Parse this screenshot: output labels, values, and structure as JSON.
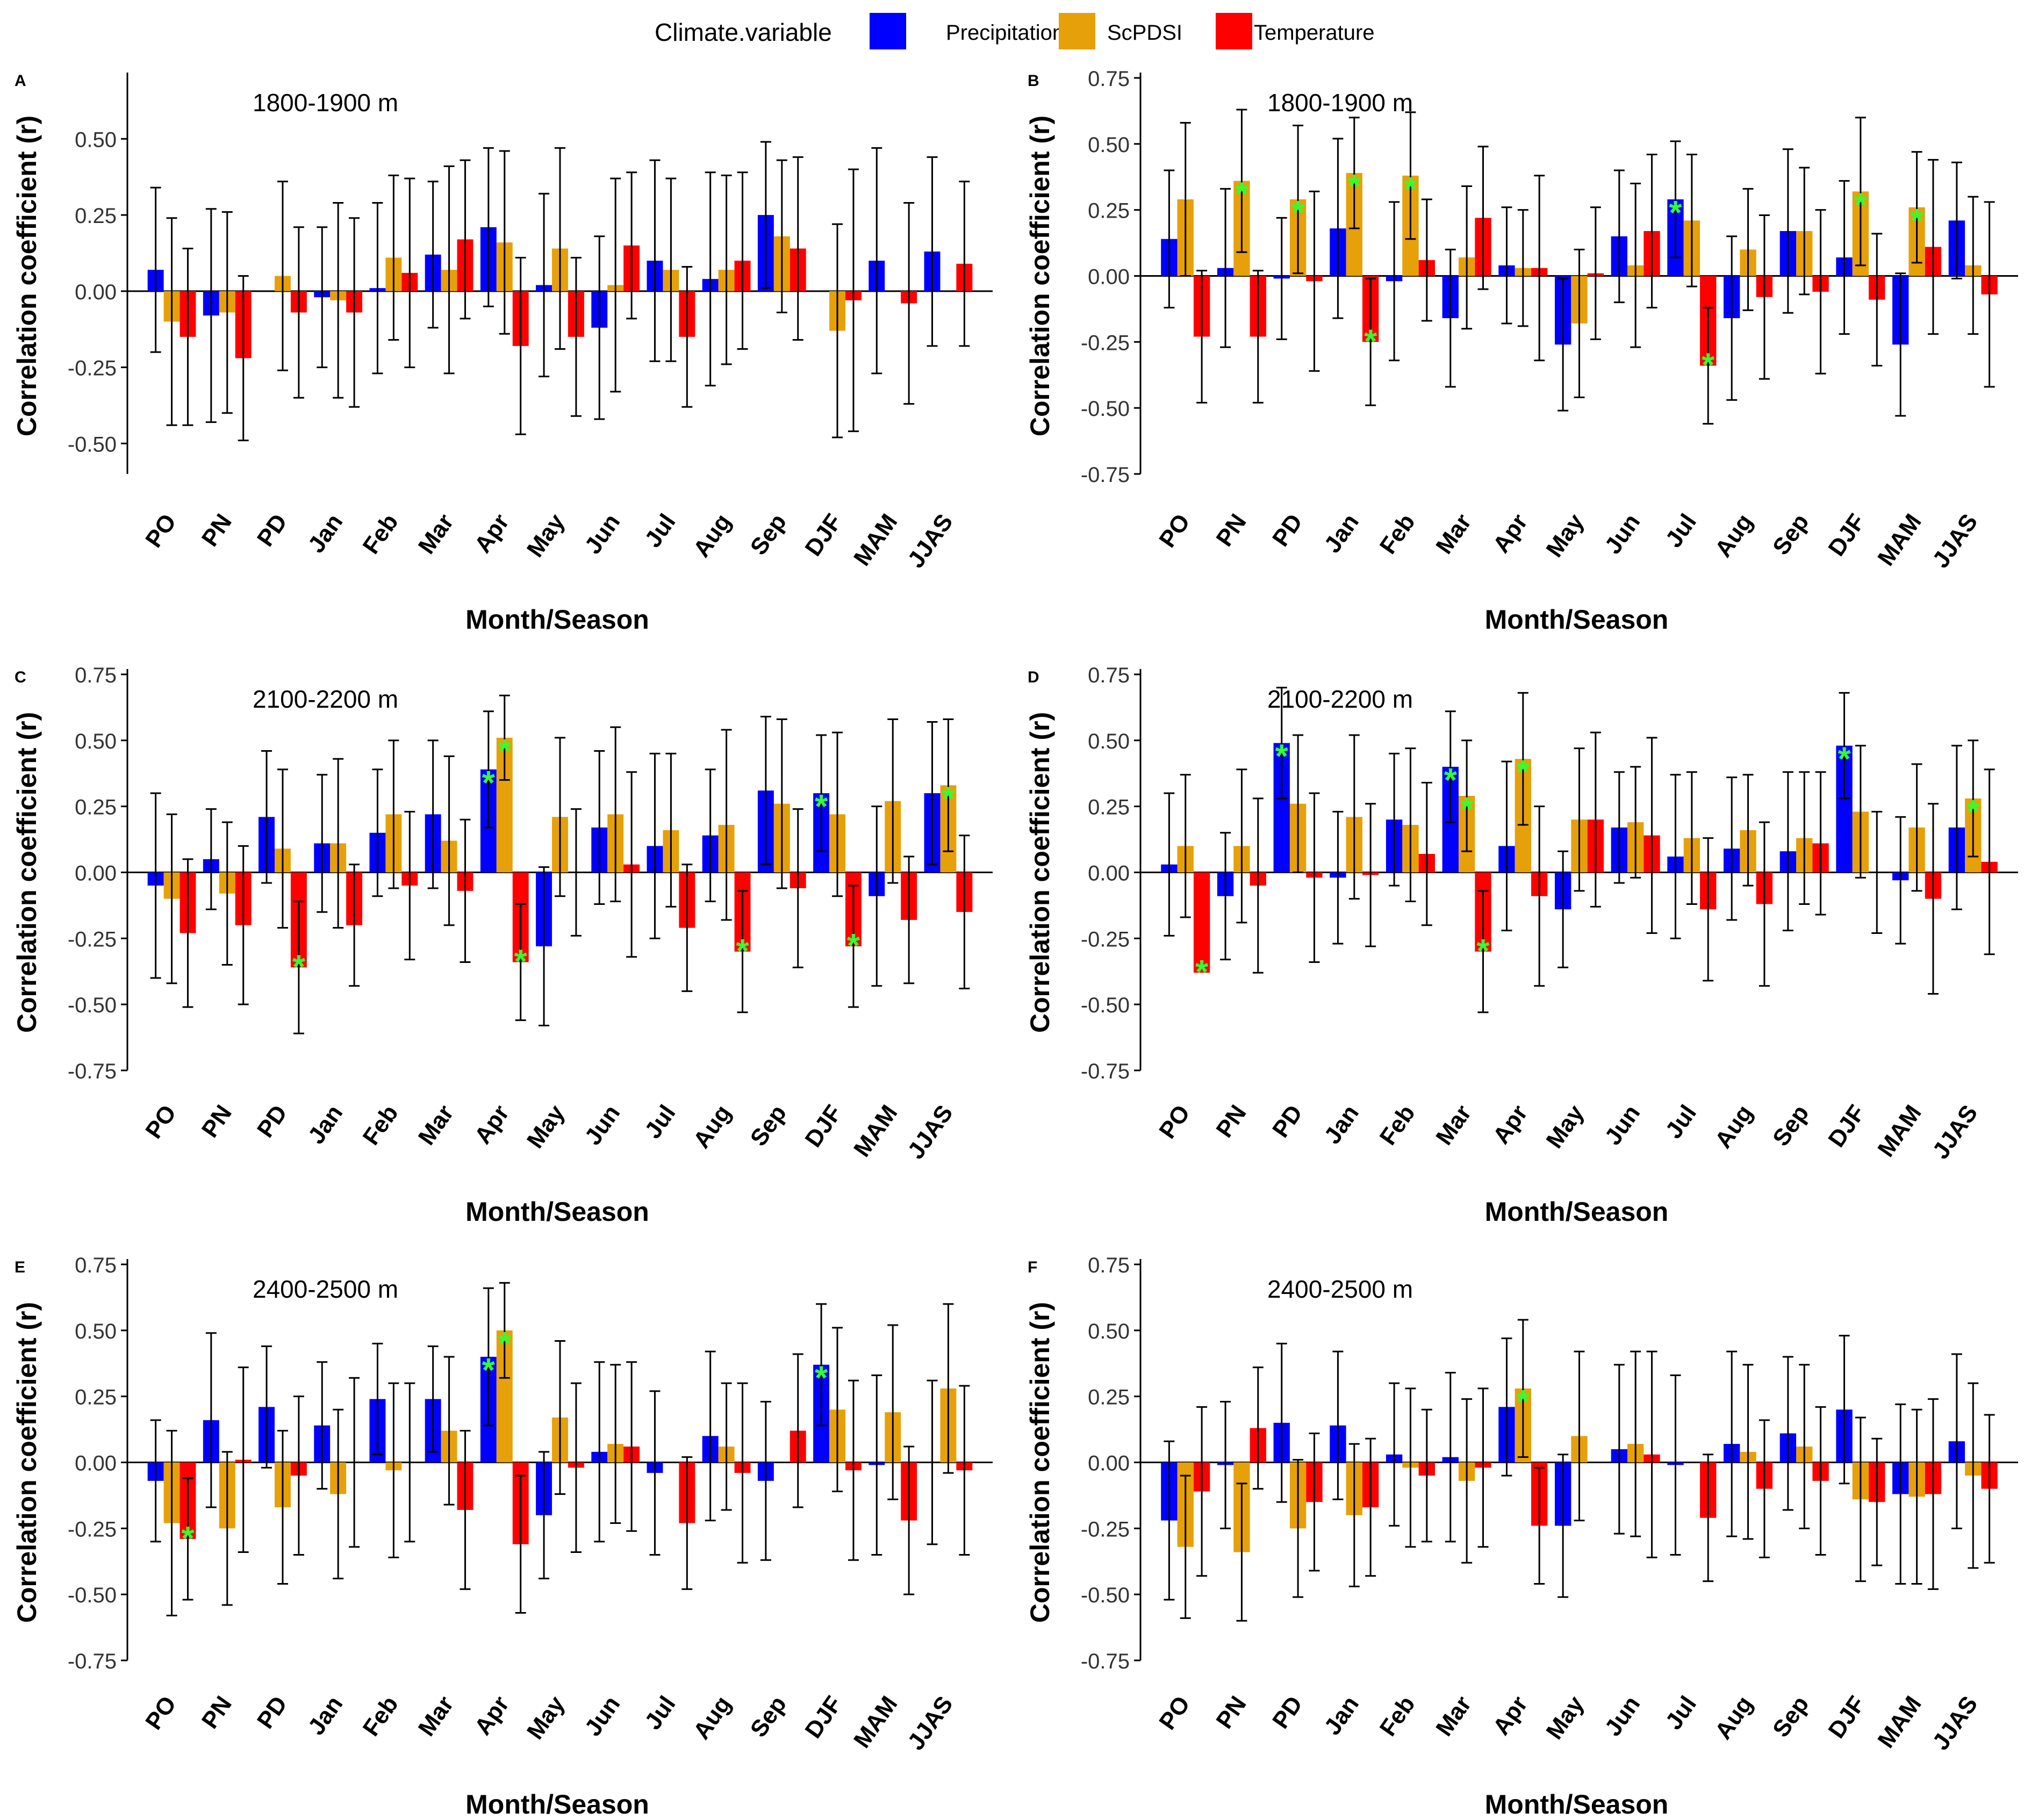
{
  "legend": {
    "title": "Climate.variable",
    "items": [
      {
        "label": "Precipitation",
        "color": "#0000FF"
      },
      {
        "label": "ScPDSI",
        "color": "#E6A00A"
      },
      {
        "label": "Temperature",
        "color": "#FF0000"
      }
    ],
    "placement": "top-center"
  },
  "significance_marker": {
    "symbol": "*",
    "color": "#33FF33"
  },
  "chart_data": [
    {
      "panel": "A",
      "type": "bar",
      "title": "1800-1900 m",
      "xlabel": "Month/Season",
      "ylabel": "Correlation coefficient (r)",
      "ylim": [
        -0.6,
        0.7
      ],
      "yticks": [
        "0.50",
        "0.25",
        "0.00",
        "-0.25",
        "-0.50"
      ],
      "categories": [
        "PO",
        "PN",
        "PD",
        "Jan",
        "Feb",
        "Mar",
        "Apr",
        "May",
        "Jun",
        "Jul",
        "Aug",
        "Sep",
        "DJF",
        "MAM",
        "JJAS"
      ],
      "series": [
        {
          "name": "Precipitation",
          "values": [
            0.07,
            -0.08,
            0.0,
            -0.02,
            0.01,
            0.12,
            0.21,
            0.02,
            -0.12,
            0.1,
            0.04,
            0.25,
            0.0,
            0.1,
            0.13
          ],
          "errors": [
            0.27,
            0.35,
            0.0,
            0.23,
            0.28,
            0.24,
            0.26,
            0.3,
            0.3,
            0.33,
            0.35,
            0.24,
            0.0,
            0.37,
            0.31
          ],
          "significant": []
        },
        {
          "name": "ScPDSI",
          "values": [
            -0.1,
            -0.07,
            0.05,
            -0.03,
            0.11,
            0.07,
            0.16,
            0.14,
            0.02,
            0.07,
            0.07,
            0.18,
            -0.13,
            0.0,
            0.0
          ],
          "errors": [
            0.34,
            0.33,
            0.31,
            0.32,
            0.27,
            0.34,
            0.3,
            0.33,
            0.35,
            0.3,
            0.31,
            0.25,
            0.35,
            0.0,
            0.0
          ],
          "significant": []
        },
        {
          "name": "Temperature",
          "values": [
            -0.15,
            -0.22,
            -0.07,
            -0.07,
            0.06,
            0.17,
            -0.18,
            -0.15,
            0.15,
            -0.15,
            0.1,
            0.14,
            -0.03,
            -0.04,
            0.09
          ],
          "errors": [
            0.29,
            0.27,
            0.28,
            0.31,
            0.31,
            0.26,
            0.29,
            0.26,
            0.24,
            0.23,
            0.29,
            0.3,
            0.43,
            0.33,
            0.27
          ],
          "significant": []
        }
      ]
    },
    {
      "panel": "B",
      "type": "bar",
      "title": "1800-1900 m",
      "xlabel": "Month/Season",
      "ylabel": "Correlation coefficient (r)",
      "ylim": [
        -0.75,
        0.75
      ],
      "yticks": [
        "0.75",
        "0.50",
        "0.25",
        "0.00",
        "-0.25",
        "-0.50",
        "-0.75"
      ],
      "categories": [
        "PO",
        "PN",
        "PD",
        "Jan",
        "Feb",
        "Mar",
        "Apr",
        "May",
        "Jun",
        "Jul",
        "Aug",
        "Sep",
        "DJF",
        "MAM",
        "JJAS"
      ],
      "series": [
        {
          "name": "Precipitation",
          "values": [
            0.14,
            0.03,
            -0.01,
            0.18,
            -0.02,
            -0.16,
            0.04,
            -0.26,
            0.15,
            0.29,
            -0.16,
            0.17,
            0.07,
            -0.26,
            0.21
          ],
          "errors": [
            0.26,
            0.3,
            0.23,
            0.34,
            0.3,
            0.26,
            0.22,
            0.25,
            0.25,
            0.22,
            0.31,
            0.31,
            0.29,
            0.27,
            0.22
          ],
          "significant": [
            9
          ]
        },
        {
          "name": "ScPDSI",
          "values": [
            0.29,
            0.36,
            0.29,
            0.39,
            0.38,
            0.07,
            0.03,
            -0.18,
            0.04,
            0.21,
            0.1,
            0.17,
            0.32,
            0.26,
            0.04
          ],
          "errors": [
            0.29,
            0.27,
            0.28,
            0.21,
            0.24,
            0.27,
            0.22,
            0.28,
            0.31,
            0.25,
            0.23,
            0.24,
            0.28,
            0.21,
            0.26
          ],
          "significant": [
            1,
            2,
            3,
            4,
            12,
            13
          ]
        },
        {
          "name": "Temperature",
          "values": [
            -0.23,
            -0.23,
            -0.02,
            -0.25,
            0.06,
            0.22,
            0.03,
            0.01,
            0.17,
            -0.34,
            -0.08,
            -0.06,
            -0.09,
            0.11,
            -0.07
          ],
          "errors": [
            0.25,
            0.25,
            0.34,
            0.24,
            0.23,
            0.27,
            0.35,
            0.25,
            0.29,
            0.22,
            0.31,
            0.31,
            0.25,
            0.33,
            0.35
          ],
          "significant": [
            3,
            9
          ]
        }
      ]
    },
    {
      "panel": "C",
      "type": "bar",
      "title": "2100-2200 m",
      "xlabel": "Month/Season",
      "ylabel": "Correlation coefficient (r)",
      "ylim": [
        -0.75,
        0.75
      ],
      "yticks": [
        "0.75",
        "0.50",
        "0.25",
        "0.00",
        "-0.25",
        "-0.50",
        "-0.75"
      ],
      "categories": [
        "PO",
        "PN",
        "PD",
        "Jan",
        "Feb",
        "Mar",
        "Apr",
        "May",
        "Jun",
        "Jul",
        "Aug",
        "Sep",
        "DJF",
        "MAM",
        "JJAS"
      ],
      "series": [
        {
          "name": "Precipitation",
          "values": [
            -0.05,
            0.05,
            0.21,
            0.11,
            0.15,
            0.22,
            0.39,
            -0.28,
            0.17,
            0.1,
            0.14,
            0.31,
            0.3,
            -0.09,
            0.3
          ],
          "errors": [
            0.35,
            0.19,
            0.25,
            0.26,
            0.24,
            0.28,
            0.22,
            0.3,
            0.29,
            0.35,
            0.25,
            0.28,
            0.22,
            0.34,
            0.27
          ],
          "significant": [
            6,
            12
          ]
        },
        {
          "name": "ScPDSI",
          "values": [
            -0.1,
            -0.08,
            0.09,
            0.11,
            0.22,
            0.12,
            0.51,
            0.21,
            0.22,
            0.16,
            0.18,
            0.26,
            0.22,
            0.27,
            0.33
          ],
          "errors": [
            0.32,
            0.27,
            0.3,
            0.32,
            0.28,
            0.32,
            0.16,
            0.3,
            0.33,
            0.29,
            0.36,
            0.32,
            0.31,
            0.31,
            0.25
          ],
          "significant": [
            6,
            14
          ]
        },
        {
          "name": "Temperature",
          "values": [
            -0.23,
            -0.2,
            -0.36,
            -0.2,
            -0.05,
            -0.07,
            -0.34,
            0.0,
            0.03,
            -0.21,
            -0.3,
            -0.06,
            -0.28,
            -0.18,
            -0.15
          ],
          "errors": [
            0.28,
            0.3,
            0.25,
            0.23,
            0.28,
            0.27,
            0.22,
            0.24,
            0.35,
            0.24,
            0.23,
            0.3,
            0.23,
            0.24,
            0.29
          ],
          "significant": [
            2,
            6,
            10,
            12
          ]
        }
      ]
    },
    {
      "panel": "D",
      "type": "bar",
      "title": "2100-2200 m",
      "xlabel": "Month/Season",
      "ylabel": "Correlation coefficient (r)",
      "ylim": [
        -0.75,
        0.75
      ],
      "yticks": [
        "0.75",
        "0.50",
        "0.25",
        "0.00",
        "-0.25",
        "-0.50",
        "-0.75"
      ],
      "categories": [
        "PO",
        "PN",
        "PD",
        "Jan",
        "Feb",
        "Mar",
        "Apr",
        "May",
        "Jun",
        "Jul",
        "Aug",
        "Sep",
        "DJF",
        "MAM",
        "JJAS"
      ],
      "series": [
        {
          "name": "Precipitation",
          "values": [
            0.03,
            -0.09,
            0.49,
            -0.02,
            0.2,
            0.4,
            0.1,
            -0.14,
            0.17,
            0.06,
            0.09,
            0.08,
            0.48,
            -0.03,
            0.17
          ],
          "errors": [
            0.27,
            0.24,
            0.21,
            0.25,
            0.25,
            0.21,
            0.32,
            0.22,
            0.21,
            0.31,
            0.27,
            0.3,
            0.2,
            0.24,
            0.31
          ],
          "significant": [
            2,
            5,
            12
          ]
        },
        {
          "name": "ScPDSI",
          "values": [
            0.1,
            0.1,
            0.26,
            0.21,
            0.18,
            0.29,
            0.43,
            0.2,
            0.19,
            0.13,
            0.16,
            0.13,
            0.23,
            0.17,
            0.28
          ],
          "errors": [
            0.27,
            0.29,
            0.26,
            0.31,
            0.29,
            0.21,
            0.25,
            0.27,
            0.21,
            0.25,
            0.21,
            0.25,
            0.25,
            0.24,
            0.22
          ],
          "significant": [
            5,
            6,
            14
          ]
        },
        {
          "name": "Temperature",
          "values": [
            -0.38,
            -0.05,
            -0.02,
            -0.01,
            0.07,
            -0.3,
            -0.09,
            0.2,
            0.14,
            -0.14,
            -0.12,
            0.11,
            0.0,
            -0.1,
            0.04
          ],
          "errors": [
            0.0,
            0.33,
            0.32,
            0.27,
            0.27,
            0.23,
            0.34,
            0.33,
            0.37,
            0.27,
            0.31,
            0.27,
            0.23,
            0.36,
            0.35
          ],
          "significant": [
            0,
            5
          ]
        }
      ]
    },
    {
      "panel": "E",
      "type": "bar",
      "title": "2400-2500 m",
      "xlabel": "Month/Season",
      "ylabel": "Correlation coefficient (r)",
      "ylim": [
        -0.75,
        0.75
      ],
      "yticks": [
        "0.75",
        "0.50",
        "0.25",
        "0.00",
        "-0.25",
        "-0.50",
        "-0.75"
      ],
      "categories": [
        "PO",
        "PN",
        "PD",
        "Jan",
        "Feb",
        "Mar",
        "Apr",
        "May",
        "Jun",
        "Jul",
        "Aug",
        "Sep",
        "DJF",
        "MAM",
        "JJAS"
      ],
      "series": [
        {
          "name": "Precipitation",
          "values": [
            -0.07,
            0.16,
            0.21,
            0.14,
            0.24,
            0.24,
            0.4,
            -0.2,
            0.04,
            -0.04,
            0.1,
            -0.07,
            0.37,
            -0.01,
            0.0
          ],
          "errors": [
            0.23,
            0.33,
            0.23,
            0.24,
            0.21,
            0.2,
            0.26,
            0.24,
            0.34,
            0.31,
            0.32,
            0.3,
            0.23,
            0.34,
            0.31
          ],
          "significant": [
            6,
            12
          ]
        },
        {
          "name": "ScPDSI",
          "values": [
            -0.23,
            -0.25,
            -0.17,
            -0.12,
            -0.03,
            0.12,
            0.5,
            0.17,
            0.07,
            0.0,
            0.06,
            0.0,
            0.2,
            0.19,
            0.28
          ],
          "errors": [
            0.35,
            0.29,
            0.29,
            0.32,
            0.33,
            0.28,
            0.18,
            0.29,
            0.3,
            0.0,
            0.24,
            0.0,
            0.31,
            0.33,
            0.32
          ],
          "significant": [
            6
          ]
        },
        {
          "name": "Temperature",
          "values": [
            -0.29,
            0.01,
            -0.05,
            0.0,
            0.0,
            -0.18,
            -0.31,
            -0.02,
            0.06,
            -0.23,
            -0.04,
            0.12,
            -0.03,
            -0.22,
            -0.03
          ],
          "errors": [
            0.23,
            0.35,
            0.3,
            0.32,
            0.3,
            0.3,
            0.26,
            0.32,
            0.32,
            0.25,
            0.34,
            0.29,
            0.34,
            0.28,
            0.32
          ],
          "significant": [
            0
          ]
        }
      ]
    },
    {
      "panel": "F",
      "type": "bar",
      "title": "2400-2500 m",
      "xlabel": "Month/Season",
      "ylabel": "Correlation coefficient (r)",
      "ylim": [
        -0.75,
        0.75
      ],
      "yticks": [
        "0.75",
        "0.50",
        "0.25",
        "0.00",
        "-0.25",
        "-0.50",
        "-0.75"
      ],
      "categories": [
        "PO",
        "PN",
        "PD",
        "Jan",
        "Feb",
        "Mar",
        "Apr",
        "May",
        "Jun",
        "Jul",
        "Aug",
        "Sep",
        "DJF",
        "MAM",
        "JJAS"
      ],
      "series": [
        {
          "name": "Precipitation",
          "values": [
            -0.22,
            -0.01,
            0.15,
            0.14,
            0.03,
            0.02,
            0.21,
            -0.24,
            0.05,
            -0.01,
            0.07,
            0.11,
            0.2,
            -0.12,
            0.08
          ],
          "errors": [
            0.3,
            0.24,
            0.3,
            0.28,
            0.27,
            0.32,
            0.26,
            0.27,
            0.32,
            0.34,
            0.35,
            0.29,
            0.28,
            0.34,
            0.33
          ],
          "significant": []
        },
        {
          "name": "ScPDSI",
          "values": [
            -0.32,
            -0.34,
            -0.25,
            -0.2,
            -0.02,
            -0.07,
            0.28,
            0.1,
            0.07,
            0.0,
            0.04,
            0.06,
            -0.14,
            -0.13,
            -0.05
          ],
          "errors": [
            0.27,
            0.26,
            0.26,
            0.27,
            0.3,
            0.31,
            0.26,
            0.32,
            0.35,
            0.0,
            0.33,
            0.31,
            0.31,
            0.33,
            0.35
          ],
          "significant": [
            6
          ]
        },
        {
          "name": "Temperature",
          "values": [
            -0.11,
            0.13,
            -0.15,
            -0.17,
            -0.05,
            -0.02,
            -0.24,
            0.0,
            0.03,
            -0.21,
            -0.1,
            -0.07,
            -0.15,
            -0.12,
            -0.1
          ],
          "errors": [
            0.32,
            0.23,
            0.26,
            0.26,
            0.25,
            0.3,
            0.22,
            0.0,
            0.39,
            0.24,
            0.26,
            0.28,
            0.24,
            0.36,
            0.28
          ],
          "significant": []
        }
      ]
    }
  ]
}
